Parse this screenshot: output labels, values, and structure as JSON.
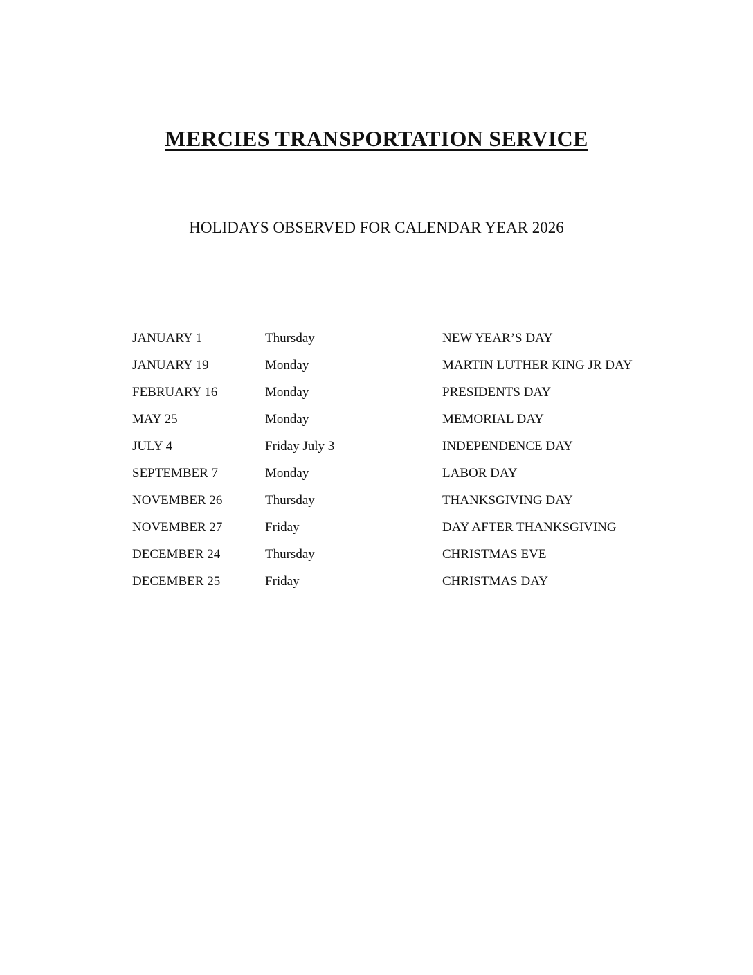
{
  "title": "MERCIES TRANSPORTATION SERVICE",
  "subtitle": "HOLIDAYS OBSERVED FOR CALENDAR YEAR 2026",
  "holidays": [
    {
      "date": "JANUARY 1",
      "day": "Thursday",
      "name": "NEW YEAR’S DAY"
    },
    {
      "date": "JANUARY 19",
      "day": "Monday",
      "name": "MARTIN LUTHER KING JR DAY"
    },
    {
      "date": "FEBRUARY 16",
      "day": "Monday",
      "name": "PRESIDENTS DAY"
    },
    {
      "date": "MAY 25",
      "day": "Monday",
      "name": "MEMORIAL DAY"
    },
    {
      "date": "JULY 4",
      "day": "Friday July 3",
      "name": "INDEPENDENCE DAY"
    },
    {
      "date": "SEPTEMBER 7",
      "day": "Monday",
      "name": "LABOR DAY"
    },
    {
      "date": "NOVEMBER 26",
      "day": "Thursday",
      "name": "THANKSGIVING DAY"
    },
    {
      "date": "NOVEMBER 27",
      "day": "Friday",
      "name": "DAY AFTER THANKSGIVING"
    },
    {
      "date": "DECEMBER 24",
      "day": "Thursday",
      "name": "CHRISTMAS EVE"
    },
    {
      "date": "DECEMBER 25",
      "day": "Friday",
      "name": "CHRISTMAS DAY"
    }
  ]
}
